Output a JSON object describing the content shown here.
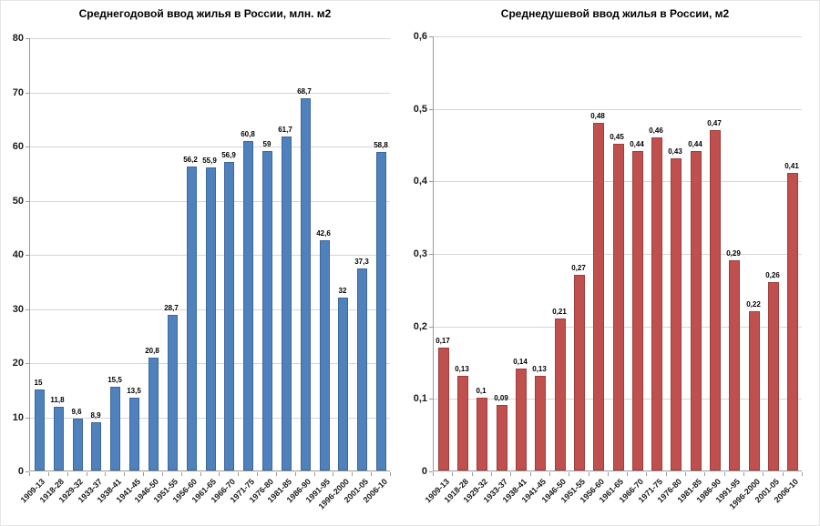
{
  "chart_data": [
    {
      "type": "bar",
      "title": "Среднегодовой ввод жилья в России, млн. м2",
      "categories": [
        "1909-13",
        "1918-28",
        "1929-32",
        "1933-37",
        "1938-41",
        "1941-45",
        "1946-50",
        "1951-55",
        "1956-60",
        "1961-65",
        "1966-70",
        "1971-75",
        "1976-80",
        "1981-85",
        "1986-90",
        "1991-95",
        "1996-2000",
        "2001-05",
        "2006-10"
      ],
      "values": [
        15,
        11.8,
        9.6,
        8.9,
        15.5,
        13.5,
        20.8,
        28.7,
        56.2,
        55.9,
        56.9,
        60.8,
        59,
        61.7,
        68.7,
        42.6,
        32,
        37.3,
        58.8
      ],
      "value_labels": [
        "15",
        "11,8",
        "9,6",
        "8,9",
        "15,5",
        "13,5",
        "20,8",
        "28,7",
        "56,2",
        "55,9",
        "56,9",
        "60,8",
        "59",
        "61,7",
        "68,7",
        "42,6",
        "32",
        "37,3",
        "58,8"
      ],
      "ylim": [
        0,
        80
      ],
      "y_ticks": [
        0,
        10,
        20,
        30,
        40,
        50,
        60,
        70,
        80
      ],
      "y_tick_labels": [
        "0",
        "10",
        "20",
        "30",
        "40",
        "50",
        "60",
        "70",
        "80"
      ],
      "bar_color": "#4f81bd",
      "bar_border_color": "#3c689a",
      "grid": true,
      "legend": "none",
      "xlabel": "",
      "ylabel": ""
    },
    {
      "type": "bar",
      "title": "Среднедушевой ввод жилья в России, м2",
      "categories": [
        "1909-13",
        "1918-28",
        "1929-32",
        "1933-37",
        "1938-41",
        "1941-45",
        "1946-50",
        "1951-55",
        "1956-60",
        "1961-65",
        "1966-70",
        "1971-75",
        "1976-80",
        "1981-85",
        "1986-90",
        "1991-95",
        "1996-2000",
        "2001-05",
        "2006-10"
      ],
      "values": [
        0.17,
        0.13,
        0.1,
        0.09,
        0.14,
        0.13,
        0.21,
        0.27,
        0.48,
        0.45,
        0.44,
        0.46,
        0.43,
        0.44,
        0.47,
        0.29,
        0.22,
        0.26,
        0.41
      ],
      "value_labels": [
        "0,17",
        "0,13",
        "0,1",
        "0,09",
        "0,14",
        "0,13",
        "0,21",
        "0,27",
        "0,48",
        "0,45",
        "0,44",
        "0,46",
        "0,43",
        "0,44",
        "0,47",
        "0,29",
        "0,22",
        "0,26",
        "0,41"
      ],
      "ylim": [
        0,
        0.6
      ],
      "y_ticks": [
        0,
        0.1,
        0.2,
        0.3,
        0.4,
        0.5,
        0.6
      ],
      "y_tick_labels": [
        "0",
        "0,1",
        "0,2",
        "0,3",
        "0,4",
        "0,5",
        "0,6"
      ],
      "bar_color": "#c0504d",
      "bar_border_color": "#9e3d3b",
      "grid": true,
      "legend": "none",
      "xlabel": "",
      "ylabel": ""
    }
  ]
}
